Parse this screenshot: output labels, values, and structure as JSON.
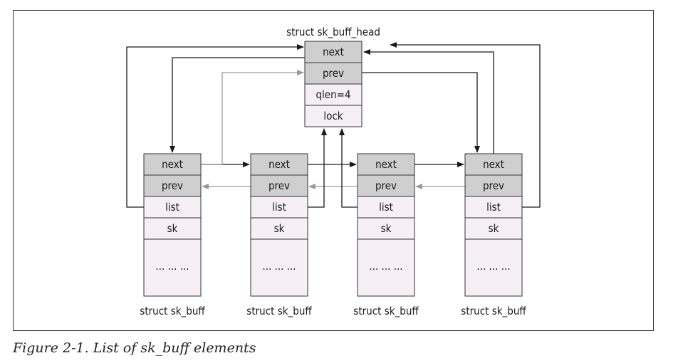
{
  "head": {
    "title": "struct sk_buff_head",
    "fields": [
      "next",
      "prev",
      "qlen=4",
      "lock"
    ]
  },
  "nodes": [
    {
      "caption": "struct sk_buff",
      "fields": [
        "next",
        "prev",
        "list",
        "sk",
        "... ... ..."
      ]
    },
    {
      "caption": "struct sk_buff",
      "fields": [
        "next",
        "prev",
        "list",
        "sk",
        "... ... ..."
      ]
    },
    {
      "caption": "struct sk_buff",
      "fields": [
        "next",
        "prev",
        "list",
        "sk",
        "... ... ..."
      ]
    },
    {
      "caption": "struct sk_buff",
      "fields": [
        "next",
        "prev",
        "list",
        "sk",
        "... ... ..."
      ]
    }
  ],
  "figure_caption": "Figure 2-1. List of sk_buff elements",
  "colors": {
    "shaded_cell": "#cfcfcf",
    "plain_cell": "#f6eff3",
    "border": "#333333",
    "arrow_dark": "#1a1a1a",
    "arrow_gray": "#999999"
  }
}
